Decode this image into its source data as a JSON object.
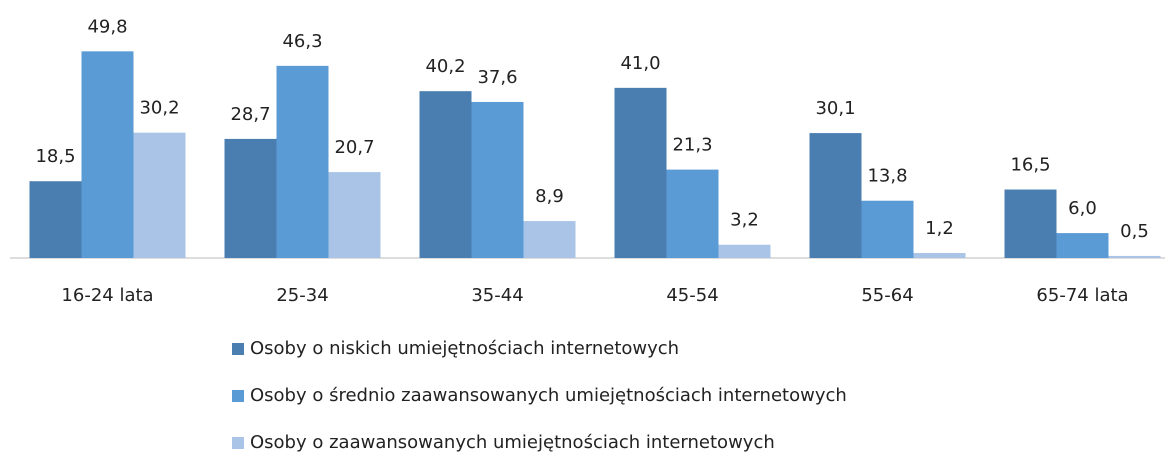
{
  "chart_data": {
    "type": "bar",
    "categories": [
      "16-24 lata",
      "25-34",
      "35-44",
      "45-54",
      "55-64",
      "65-74 lata"
    ],
    "series": [
      {
        "name": "Osoby o niskich umiejętnościach internetowych",
        "color": "#4a7eb0",
        "values": [
          18.5,
          28.7,
          40.2,
          41.0,
          30.1,
          16.5
        ],
        "value_labels": [
          "18,5",
          "28,7",
          "40,2",
          "41,0",
          "30,1",
          "16,5"
        ]
      },
      {
        "name": "Osoby o średnio zaawansowanych umiejętnościach internetowych",
        "color": "#5b9bd5",
        "values": [
          49.8,
          46.3,
          37.6,
          21.3,
          13.8,
          6.0
        ],
        "value_labels": [
          "49,8",
          "46,3",
          "37,6",
          "21,3",
          "13,8",
          "6,0"
        ]
      },
      {
        "name": "Osoby o zaawansowanych umiejętnościach internetowych",
        "color": "#a9c4e6",
        "values": [
          30.2,
          20.7,
          8.9,
          3.2,
          1.2,
          0.5
        ],
        "value_labels": [
          "30,2",
          "20,7",
          "8,9",
          "3,2",
          "1,2",
          "0,5"
        ]
      }
    ]
  }
}
